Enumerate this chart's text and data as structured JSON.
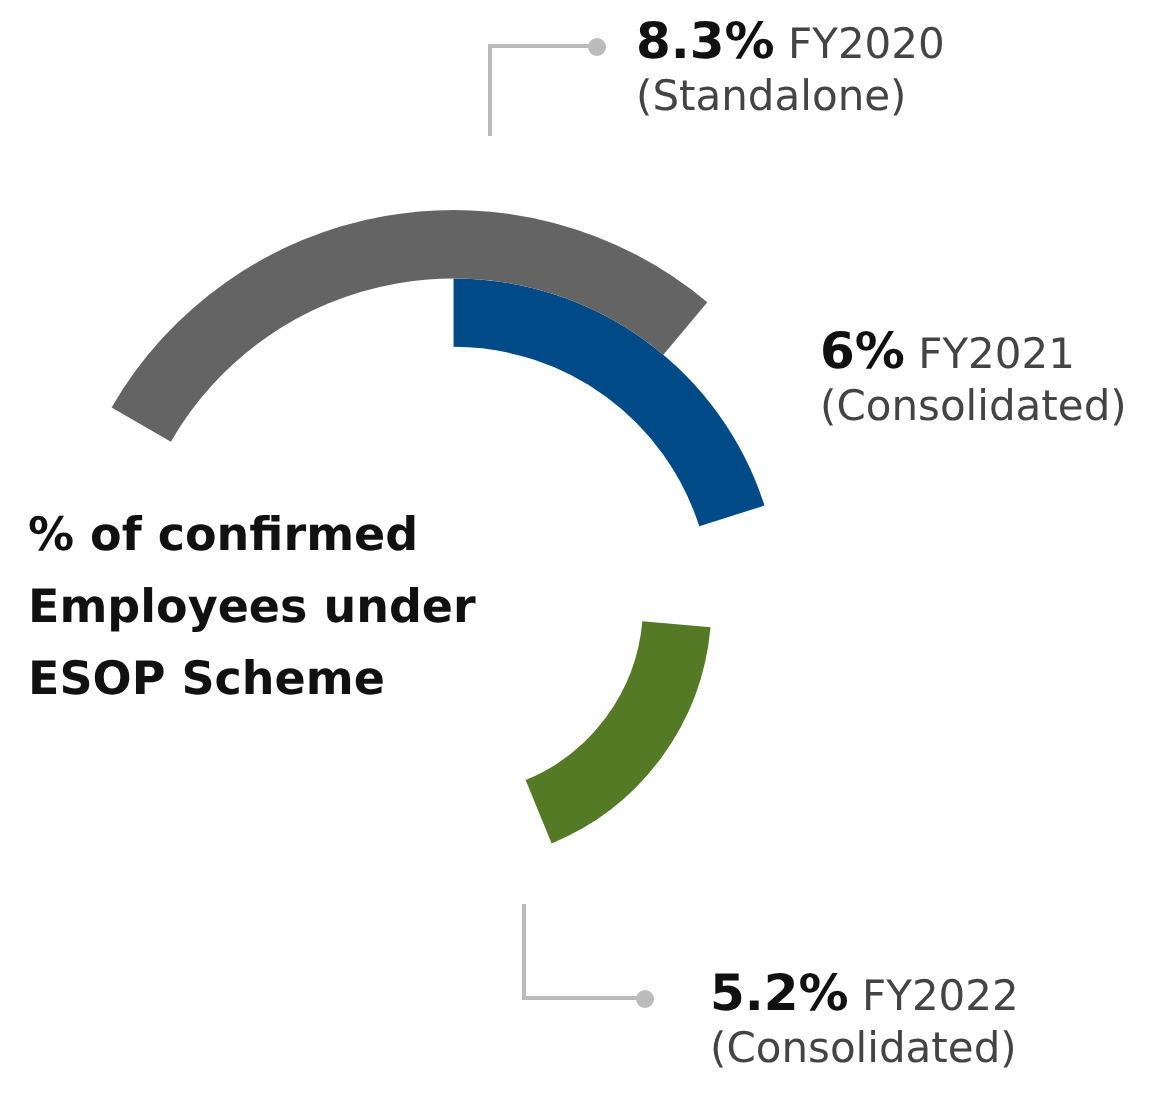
{
  "chart_data": {
    "type": "other",
    "title": "% of confirmed Employees under ESOP Scheme",
    "categories": [
      "FY2020",
      "FY2021",
      "FY2022"
    ],
    "values": [
      8.3,
      6,
      5.2
    ],
    "value_labels": [
      "8.3%",
      "6%",
      "5.2%"
    ],
    "colors": [
      "#646464",
      "#004b87",
      "#557a26"
    ],
    "annotations": [
      "(Standalone)",
      "(Consolidated)",
      "(Consolidated)"
    ],
    "legend": false
  }
}
